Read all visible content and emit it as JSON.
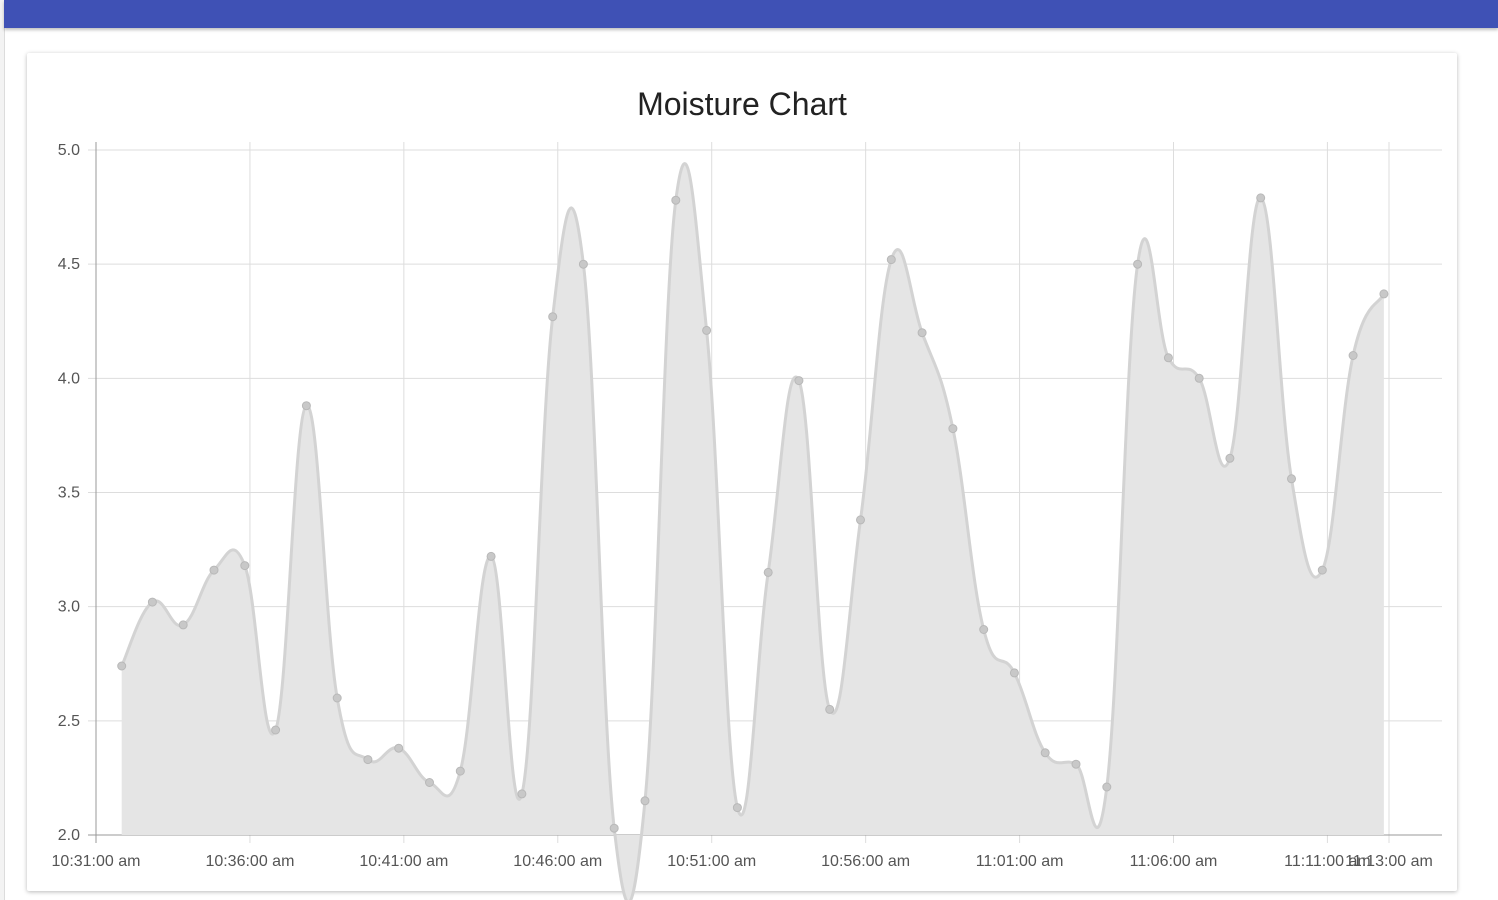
{
  "colors": {
    "header": "#3f51b5",
    "grid": "#dddddd",
    "axis": "#999999",
    "area_fill": "#e5e5e5",
    "line": "#d3d3d3",
    "point": "#c8c8c8"
  },
  "chart_data": {
    "type": "area",
    "title": "Moisture Chart",
    "xlabel": "",
    "ylabel": "",
    "ylim": [
      2.0,
      5.0
    ],
    "yticks": [
      "2.0",
      "2.5",
      "3.0",
      "3.5",
      "4.0",
      "4.5",
      "5.0"
    ],
    "xlim": [
      "10:31:00 am",
      "11:13:00 am"
    ],
    "xticks": [
      "10:31:00 am",
      "10:36:00 am",
      "10:41:00 am",
      "10:46:00 am",
      "10:51:00 am",
      "10:56:00 am",
      "11:01:00 am",
      "11:06:00 am",
      "11:11:00 am",
      "11:13:00 am"
    ],
    "grid": true,
    "legend": "none",
    "series": [
      {
        "x": [
          "10:31:50 am",
          "10:32:50 am",
          "10:33:50 am",
          "10:34:50 am",
          "10:35:50 am",
          "10:36:50 am",
          "10:37:50 am",
          "10:38:50 am",
          "10:39:50 am",
          "10:40:50 am",
          "10:41:50 am",
          "10:42:50 am",
          "10:43:50 am",
          "10:44:50 am",
          "10:45:50 am",
          "10:46:50 am",
          "10:47:50 am",
          "10:48:50 am",
          "10:49:50 am",
          "10:50:50 am",
          "10:51:50 am",
          "10:52:50 am",
          "10:53:50 am",
          "10:54:50 am",
          "10:55:50 am",
          "10:56:50 am",
          "10:57:50 am",
          "10:58:50 am",
          "10:59:50 am",
          "11:00:50 am",
          "11:01:50 am",
          "11:02:50 am",
          "11:03:50 am",
          "11:04:50 am",
          "11:05:50 am",
          "11:06:50 am",
          "11:07:50 am",
          "11:08:50 am",
          "11:09:50 am",
          "11:10:50 am",
          "11:11:50 am",
          "11:12:50 am"
        ],
        "values": [
          2.74,
          3.02,
          2.92,
          3.16,
          3.18,
          2.46,
          3.88,
          2.6,
          2.33,
          2.38,
          2.23,
          2.28,
          3.22,
          2.18,
          4.27,
          4.5,
          2.03,
          2.15,
          4.78,
          4.21,
          2.12,
          3.15,
          3.99,
          2.55,
          3.38,
          4.52,
          4.2,
          3.78,
          2.9,
          2.71,
          2.36,
          2.31,
          2.21,
          4.5,
          4.09,
          4.0,
          3.65,
          4.79,
          3.56,
          3.16,
          4.1,
          4.37
        ]
      }
    ]
  }
}
